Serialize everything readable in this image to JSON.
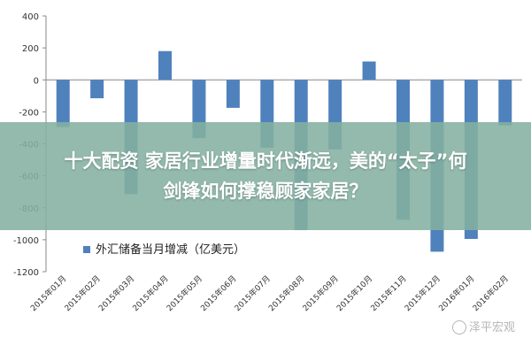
{
  "chart_data": {
    "type": "bar",
    "categories": [
      "2015年01月",
      "2015年02月",
      "2015年03月",
      "2015年04月",
      "2015年05月",
      "2015年06月",
      "2015年07月",
      "2015年08月",
      "2015年09月",
      "2015年10月",
      "2015年11月",
      "2015年12月",
      "2016年01月",
      "2016年02月"
    ],
    "series": [
      {
        "name": "外汇储备当月增减（亿美元）",
        "values": [
          -295,
          -115,
          -715,
          180,
          -365,
          -175,
          -425,
          -940,
          -435,
          115,
          -875,
          -1075,
          -995,
          -285
        ],
        "color": "#4f81bd"
      }
    ],
    "ylim": [
      -1200,
      400
    ],
    "yticks": [
      400,
      200,
      0,
      -200,
      -400,
      -600,
      -800,
      -1000,
      -1200
    ],
    "grid": false,
    "legend_position": "bottom-left"
  },
  "overlay": {
    "line1": "十大配资 家居行业增量时代渐远，美的“太子”何",
    "line2": "剑锋如何撑稳顾家家居？"
  },
  "watermark": {
    "text": "泽平宏观"
  }
}
